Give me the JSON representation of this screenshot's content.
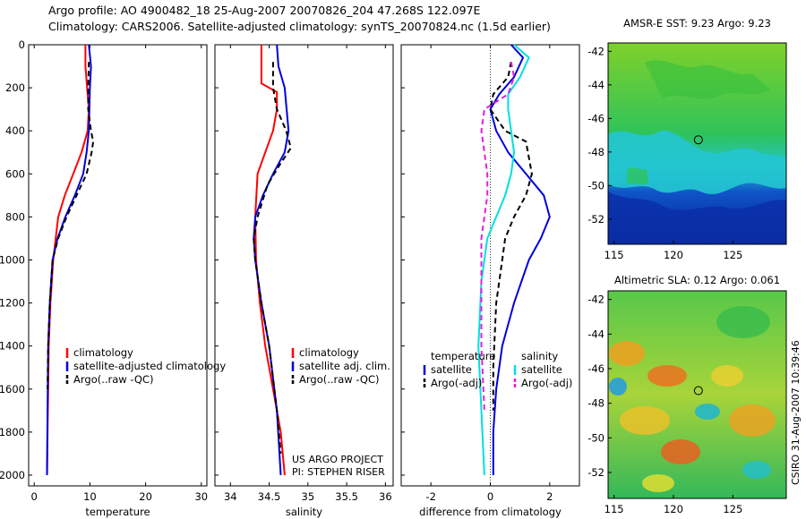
{
  "header": {
    "line1": "Argo profile: AO 4900482_18 25-Aug-2007 20070826_204 47.268S 122.097E",
    "line2": "Climatology: CARS2006. Satellite-adjusted climatology: synTS_20070824.nc (1.5d earlier)"
  },
  "side_label": "CSIRO 31-Aug-2007 10:39:46",
  "credits": [
    "US ARGO PROJECT",
    "PI: STEPHEN RISER"
  ],
  "colors": {
    "red": "#ff0000",
    "blue": "#0000dd",
    "black": "#000000",
    "cyan": "#00e0e0",
    "magenta": "#e020e0"
  },
  "chart_data": [
    {
      "type": "line",
      "xlabel": "temperature",
      "ylabel": "",
      "xlim": [
        -1,
        31
      ],
      "ylim": [
        2050,
        0
      ],
      "xticks": [
        0,
        10,
        20,
        30
      ],
      "yticks": [
        0,
        200,
        400,
        600,
        800,
        1000,
        1200,
        1400,
        1600,
        1800,
        2000
      ],
      "legend": [
        "climatology",
        "satellite-adjusted climatology",
        "Argo(..raw -QC)"
      ],
      "series": [
        {
          "name": "climatology",
          "color": "#ff0000",
          "dash": "",
          "x": [
            9.2,
            9.2,
            9.5,
            9.8,
            9.6,
            8.5,
            7.0,
            5.5,
            4.3,
            3.4,
            2.9,
            2.6,
            2.5,
            2.4,
            2.3
          ],
          "y": [
            0,
            100,
            200,
            300,
            400,
            500,
            600,
            700,
            800,
            1000,
            1200,
            1400,
            1600,
            1800,
            2000
          ]
        },
        {
          "name": "satellite-adjusted climatology",
          "color": "#0000dd",
          "dash": "",
          "x": [
            9.8,
            10.2,
            10.0,
            9.9,
            9.8,
            9.4,
            8.8,
            7.3,
            5.6,
            4.2,
            3.3,
            2.8,
            2.5,
            2.4,
            2.3
          ],
          "y": [
            0,
            100,
            200,
            300,
            400,
            500,
            600,
            700,
            800,
            900,
            1000,
            1200,
            1400,
            1700,
            2000
          ]
        },
        {
          "name": "Argo(..raw -QC)",
          "color": "#000000",
          "dash": "6,4",
          "x": [
            9.8,
            9.7,
            9.7,
            10.2,
            10.6,
            10.3,
            9.4,
            7.6,
            5.8,
            4.3,
            3.3,
            2.8,
            2.5,
            2.4
          ],
          "y": [
            80,
            200,
            300,
            400,
            450,
            500,
            600,
            700,
            800,
            900,
            1000,
            1200,
            1400,
            1600
          ]
        }
      ]
    },
    {
      "type": "line",
      "xlabel": "salinity",
      "ylabel": "",
      "xlim": [
        33.8,
        36.1
      ],
      "ylim": [
        2050,
        0
      ],
      "xticks": [
        34,
        34.5,
        35,
        35.5,
        36
      ],
      "legend": [
        "climatology",
        "satellite adj. clim.",
        "Argo(..raw -QC)"
      ],
      "series": [
        {
          "name": "climatology",
          "color": "#ff0000",
          "dash": "",
          "x": [
            34.4,
            34.4,
            34.6,
            34.6,
            34.55,
            34.45,
            34.35,
            34.32,
            34.33,
            34.38,
            34.45,
            34.55,
            34.65,
            34.7
          ],
          "y": [
            0,
            180,
            220,
            300,
            400,
            500,
            600,
            800,
            1000,
            1200,
            1400,
            1600,
            1800,
            2000
          ]
        },
        {
          "name": "satellite adj. clim.",
          "color": "#0000dd",
          "dash": "",
          "x": [
            34.6,
            34.62,
            34.7,
            34.75,
            34.7,
            34.55,
            34.42,
            34.32,
            34.3,
            34.32,
            34.4,
            34.5,
            34.6,
            34.65
          ],
          "y": [
            0,
            100,
            200,
            400,
            500,
            600,
            700,
            800,
            900,
            1000,
            1200,
            1400,
            1700,
            2000
          ]
        },
        {
          "name": "Argo(..raw -QC)",
          "color": "#000000",
          "dash": "6,4",
          "x": [
            34.55,
            34.55,
            34.6,
            34.72,
            34.78,
            34.65,
            34.48,
            34.35,
            34.3,
            34.32,
            34.4,
            34.5,
            34.6,
            34.65
          ],
          "y": [
            80,
            200,
            300,
            400,
            480,
            550,
            650,
            800,
            900,
            1000,
            1200,
            1400,
            1700,
            1900
          ]
        }
      ]
    },
    {
      "type": "line",
      "xlabel": "difference from climatology",
      "ylabel": "",
      "xlim": [
        -3,
        3
      ],
      "ylim": [
        2050,
        0
      ],
      "xticks": [
        -2,
        0,
        2
      ],
      "legend_temperature_title": "temperature",
      "legend_salinity_title": "salinity",
      "legend": [
        "satellite",
        "Argo(-adj)",
        "satellite",
        "Argo(-adj)"
      ],
      "series": [
        {
          "name": "satellite",
          "group": "temperature",
          "color": "#0000dd",
          "dash": "",
          "x": [
            0.7,
            1.1,
            0.8,
            0.3,
            0.0,
            0.2,
            0.6,
            1.2,
            1.8,
            2.0,
            1.7,
            1.3,
            0.8,
            0.4,
            0.2,
            0.1,
            0.1
          ],
          "y": [
            0,
            60,
            150,
            230,
            300,
            400,
            500,
            600,
            700,
            800,
            900,
            1000,
            1200,
            1400,
            1600,
            1800,
            2000
          ]
        },
        {
          "name": "Argo(-adj)",
          "group": "temperature",
          "color": "#000000",
          "dash": "6,4",
          "x": [
            0.7,
            0.6,
            0.1,
            0.0,
            0.5,
            1.2,
            1.4,
            1.2,
            0.8,
            0.5,
            0.4,
            0.2,
            0.1,
            0.1
          ],
          "y": [
            80,
            150,
            230,
            300,
            400,
            450,
            600,
            700,
            800,
            900,
            1000,
            1200,
            1500,
            1700
          ]
        },
        {
          "name": "satellite",
          "group": "salinity",
          "color": "#00e0e0",
          "dash": "",
          "x": [
            0.8,
            1.3,
            1.0,
            0.6,
            0.6,
            0.7,
            0.8,
            0.7,
            0.5,
            0.2,
            -0.1,
            -0.3,
            -0.4,
            -0.3,
            -0.2
          ],
          "y": [
            0,
            60,
            150,
            230,
            300,
            400,
            500,
            600,
            700,
            800,
            900,
            1100,
            1400,
            1700,
            2000
          ]
        },
        {
          "name": "Argo(-adj)",
          "group": "salinity",
          "color": "#e020e0",
          "dash": "6,4",
          "x": [
            0.7,
            0.8,
            0.6,
            -0.2,
            -0.3,
            -0.2,
            -0.1,
            -0.1,
            -0.2,
            -0.3,
            -0.3,
            -0.3,
            -0.2
          ],
          "y": [
            80,
            150,
            230,
            300,
            400,
            500,
            600,
            700,
            800,
            900,
            1100,
            1400,
            1700
          ]
        }
      ]
    },
    {
      "type": "heatmap",
      "title": "AMSR-E SST: 9.23 Argo: 9.23",
      "xlabel": "",
      "ylabel": "",
      "xlim": [
        114.5,
        129.5
      ],
      "ylim": [
        -53.5,
        -41.5
      ],
      "xticks": [
        115,
        120,
        125
      ],
      "yticks": [
        -42,
        -44,
        -46,
        -48,
        -50,
        -52
      ],
      "marker": {
        "lon": 122.1,
        "lat": -47.27
      }
    },
    {
      "type": "heatmap",
      "title": "Altimetric SLA: 0.12 Argo: 0.061",
      "xlabel": "",
      "ylabel": "",
      "xlim": [
        114.5,
        129.5
      ],
      "ylim": [
        -53.5,
        -41.5
      ],
      "xticks": [
        115,
        120,
        125
      ],
      "yticks": [
        -42,
        -44,
        -46,
        -48,
        -50,
        -52
      ],
      "marker": {
        "lon": 122.1,
        "lat": -47.27
      }
    }
  ]
}
